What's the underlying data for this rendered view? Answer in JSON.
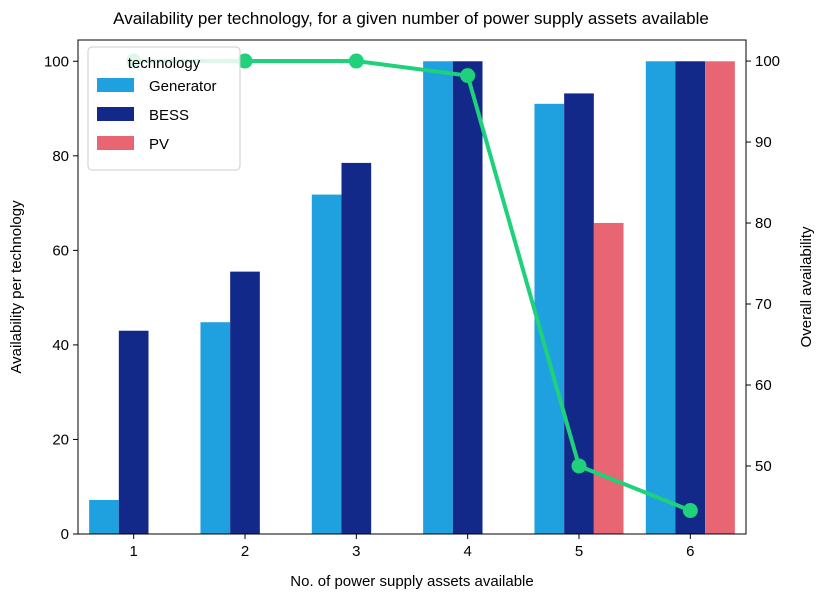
{
  "chart_data": {
    "type": "bar",
    "title": "Availability per technology, for a given number of power supply assets available",
    "xlabel": "No. of power supply assets available",
    "ylabel": "Availability per technology",
    "y2label": "Overall availability",
    "categories": [
      "1",
      "2",
      "3",
      "4",
      "5",
      "6"
    ],
    "ylim": [
      0,
      104.5
    ],
    "yticks": [
      0,
      20,
      40,
      60,
      80,
      100
    ],
    "y2lim": [
      41.6,
      102.6
    ],
    "y2ticks": [
      50,
      60,
      70,
      80,
      90,
      100
    ],
    "legend_title": "technology",
    "legend_position": "top-left",
    "series": [
      {
        "name": "Generator",
        "color": "#1fa1e0",
        "values": [
          7.2,
          44.8,
          71.8,
          100,
          91,
          100
        ]
      },
      {
        "name": "BESS",
        "color": "#13298a",
        "values": [
          43,
          55.5,
          78.5,
          100,
          93.2,
          100
        ]
      },
      {
        "name": "PV",
        "color": "#e86674",
        "values": [
          null,
          null,
          null,
          null,
          65.8,
          100
        ]
      }
    ],
    "overall": {
      "type": "line",
      "axis": "right",
      "color": "#1ed17a",
      "values": [
        100,
        100,
        100,
        98.2,
        50,
        44.5
      ]
    }
  }
}
